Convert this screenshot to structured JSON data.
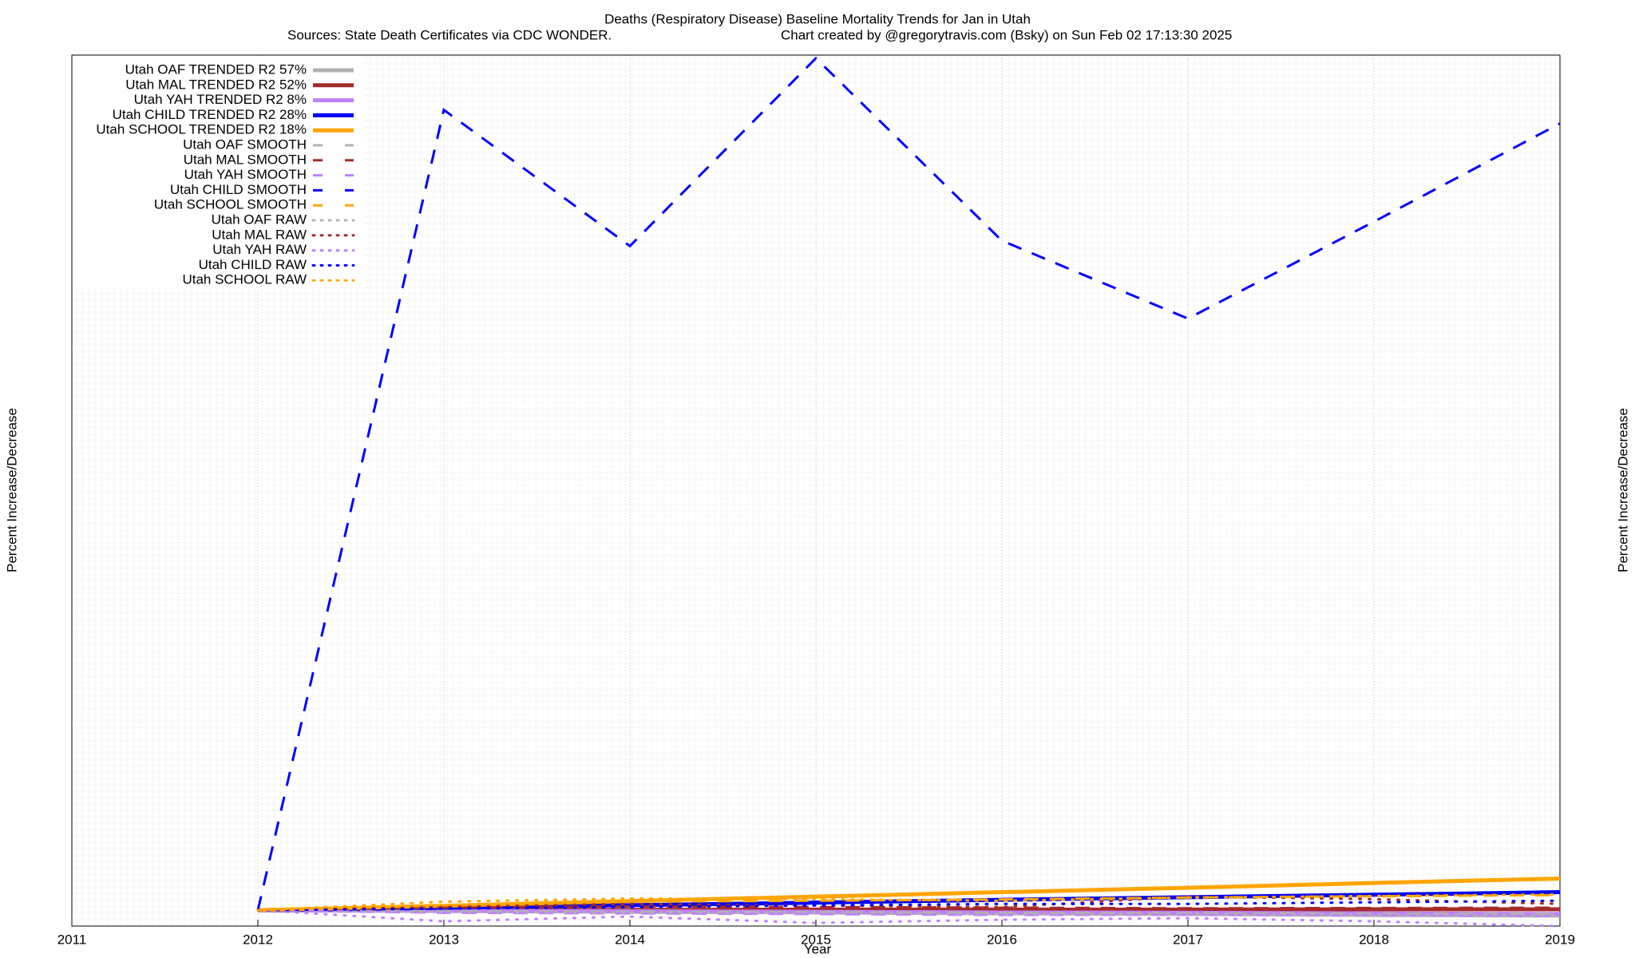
{
  "chart_data": {
    "type": "line",
    "title": "Deaths (Respiratory Disease)  Baseline Mortality Trends for Jan in Utah",
    "subtitle": "Sources: State Death Certificates via CDC WONDER.",
    "credit": "Chart created by @gregorytravis.com (Bsky) on Sun Feb 02 17:13:30 2025",
    "x_label": "Year",
    "y_label": "Percent Increase/Decrease",
    "y2_label": "Percent Increase/Decrease",
    "x": [
      2012,
      2013,
      2014,
      2015,
      2016,
      2017,
      2018,
      2019
    ],
    "xlim": [
      2011,
      2019
    ],
    "xticks": [
      2011,
      2012,
      2013,
      2014,
      2015,
      2016,
      2017,
      2018,
      2019
    ],
    "ylim": [
      -50,
      2700
    ],
    "grid": true,
    "legend": "top-left",
    "series": [
      {
        "name": "Utah OAF TRENDED R2  57%",
        "color": "#b0b0b0",
        "style": "solid",
        "values": [
          0,
          -2,
          -5,
          -7,
          -10,
          -12,
          -15,
          -17
        ]
      },
      {
        "name": "Utah MAL TRENDED R2  52%",
        "color": "#a52a2a",
        "style": "solid",
        "values": [
          0,
          1,
          1,
          2,
          2,
          2,
          3,
          3
        ]
      },
      {
        "name": "Utah YAH TRENDED R2   8%",
        "color": "#c080ff",
        "style": "solid",
        "values": [
          0,
          -2,
          -3,
          -5,
          -7,
          -8,
          -10,
          -12
        ]
      },
      {
        "name": "Utah CHILD TRENDED R2  28%",
        "color": "#0000ff",
        "style": "solid",
        "values": [
          0,
          8,
          16,
          24,
          33,
          41,
          49,
          57
        ]
      },
      {
        "name": "Utah SCHOOL TRENDED R2  18%",
        "color": "#ffa500",
        "style": "solid",
        "values": [
          0,
          14,
          29,
          43,
          57,
          71,
          86,
          100
        ]
      },
      {
        "name": "Utah OAF SMOOTH",
        "color": "#b0b0b0",
        "style": "dashed",
        "values": [
          0,
          -3,
          -5,
          -6,
          -8,
          -9,
          -10,
          -11
        ]
      },
      {
        "name": "Utah MAL SMOOTH",
        "color": "#a52a2a",
        "style": "dashed",
        "values": [
          0,
          8,
          12,
          10,
          8,
          6,
          7,
          8
        ]
      },
      {
        "name": "Utah YAH SMOOTH",
        "color": "#c080ff",
        "style": "dashed",
        "values": [
          0,
          -8,
          -10,
          -12,
          -15,
          -14,
          -16,
          -18
        ]
      },
      {
        "name": "Utah CHILD SMOOTH",
        "color": "#0000ff",
        "style": "dashed",
        "values": [
          0,
          2527,
          2097,
          2690,
          2114,
          1868,
          2174,
          2484
        ]
      },
      {
        "name": "Utah SCHOOL SMOOTH",
        "color": "#ffa500",
        "style": "dashed",
        "values": [
          0,
          15,
          27,
          30,
          34,
          40,
          44,
          48
        ]
      },
      {
        "name": "Utah OAF RAW",
        "color": "#b0b0b0",
        "style": "dotted",
        "values": [
          0,
          -5,
          -8,
          -6,
          -12,
          -10,
          -14,
          -15
        ]
      },
      {
        "name": "Utah MAL RAW",
        "color": "#a52a2a",
        "style": "dotted",
        "values": [
          0,
          10,
          20,
          15,
          10,
          43,
          35,
          20
        ]
      },
      {
        "name": "Utah YAH RAW",
        "color": "#c080ff",
        "style": "dotted",
        "values": [
          0,
          -35,
          -20,
          -40,
          -30,
          -25,
          -35,
          -50
        ]
      },
      {
        "name": "Utah CHILD RAW",
        "color": "#0000ff",
        "style": "dotted",
        "values": [
          0,
          5,
          10,
          15,
          20,
          20,
          25,
          30
        ]
      },
      {
        "name": "Utah SCHOOL RAW",
        "color": "#ffa500",
        "style": "dotted",
        "values": [
          0,
          27,
          37,
          35,
          30,
          40,
          45,
          50
        ]
      }
    ]
  }
}
